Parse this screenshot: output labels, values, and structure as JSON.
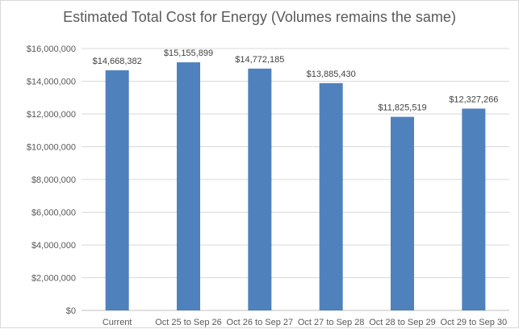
{
  "chart_data": {
    "type": "bar",
    "title": "Estimated Total Cost for Energy (Volumes remains the same)",
    "xlabel": "",
    "ylabel": "",
    "categories": [
      "Current",
      "Oct 25 to Sep 26",
      "Oct 26 to Sep 27",
      "Oct 27 to Sep 28",
      "Oct 28 to Sep 29",
      "Oct 29 to Sep 30"
    ],
    "values": [
      14668382,
      15155899,
      14772185,
      13885430,
      11825519,
      12327266
    ],
    "data_labels": [
      "$14,668,382",
      "$15,155,899",
      "$14,772,185",
      "$13,885,430",
      "$11,825,519",
      "$12,327,266"
    ],
    "ylim": [
      0,
      16000000
    ],
    "y_ticks": [
      0,
      2000000,
      4000000,
      6000000,
      8000000,
      10000000,
      12000000,
      14000000,
      16000000
    ],
    "y_tick_labels": [
      "$0",
      "$2,000,000",
      "$4,000,000",
      "$6,000,000",
      "$8,000,000",
      "$10,000,000",
      "$12,000,000",
      "$14,000,000",
      "$16,000,000"
    ],
    "grid": true,
    "legend": "none",
    "colors": {
      "bar": "#4f81bd",
      "grid": "#d9d9d9",
      "axis": "#bfbfbf"
    }
  }
}
